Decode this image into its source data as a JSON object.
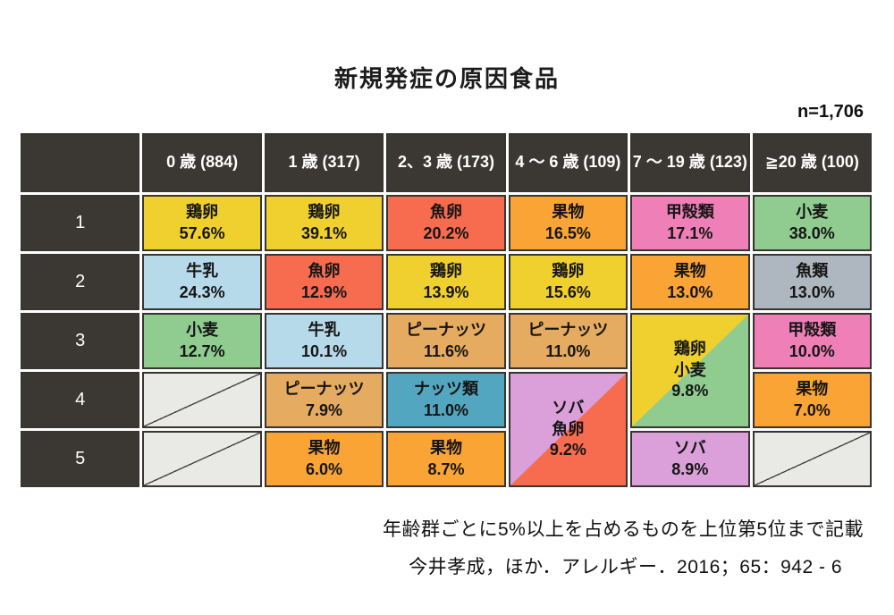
{
  "title": "新規発症の原因食品",
  "sample_size_label": "n=1,706",
  "footnote": "年齢群ごとに5%以上を占めるものを上位第5位まで記載",
  "citation": "今井孝成，ほか．アレルギー．2016；65：942 - 6",
  "colors": {
    "egg": "#efd02f",
    "fish_roe": "#f76b4e",
    "fruit": "#f9a435",
    "crustacean": "#ee7fb7",
    "wheat": "#90cc90",
    "milk": "#b7daeb",
    "fish": "#aeb7bf",
    "peanut": "#e5ab60",
    "nuts": "#53a6bf",
    "buckwheat": "#db9fd9",
    "header_bg": "#3b3733",
    "empty_bg": "#e9e9e6"
  },
  "chart_data": {
    "type": "table",
    "title": "新規発症の原因食品",
    "n_total": 1706,
    "columns": [
      {
        "age": "0 歳",
        "n": "(884)",
        "size": 884
      },
      {
        "age": "1 歳",
        "n": "(317)",
        "size": 317
      },
      {
        "age": "2、3 歳",
        "n": "(173)",
        "size": 173
      },
      {
        "age": "4 ～ 6 歳",
        "n": "(109)",
        "size": 109
      },
      {
        "age": "7 ～ 19 歳",
        "n": "(123)",
        "size": 123
      },
      {
        "age": "≧20 歳",
        "n": "(100)",
        "size": 100
      }
    ],
    "rows": [
      {
        "rank": "1",
        "cells": [
          {
            "food": "鶏卵",
            "value": "57.6%",
            "color": "egg"
          },
          {
            "food": "鶏卵",
            "value": "39.1%",
            "color": "egg"
          },
          {
            "food": "魚卵",
            "value": "20.2%",
            "color": "fish_roe"
          },
          {
            "food": "果物",
            "value": "16.5%",
            "color": "fruit"
          },
          {
            "food": "甲殻類",
            "value": "17.1%",
            "color": "crustacean"
          },
          {
            "food": "小麦",
            "value": "38.0%",
            "color": "wheat"
          }
        ]
      },
      {
        "rank": "2",
        "cells": [
          {
            "food": "牛乳",
            "value": "24.3%",
            "color": "milk"
          },
          {
            "food": "魚卵",
            "value": "12.9%",
            "color": "fish_roe"
          },
          {
            "food": "鶏卵",
            "value": "13.9%",
            "color": "egg"
          },
          {
            "food": "鶏卵",
            "value": "15.6%",
            "color": "egg"
          },
          {
            "food": "果物",
            "value": "13.0%",
            "color": "fruit"
          },
          {
            "food": "魚類",
            "value": "13.0%",
            "color": "fish"
          }
        ]
      },
      {
        "rank": "3",
        "cells": [
          {
            "food": "小麦",
            "value": "12.7%",
            "color": "wheat"
          },
          {
            "food": "牛乳",
            "value": "10.1%",
            "color": "milk"
          },
          {
            "food": "ピーナッツ",
            "value": "11.6%",
            "color": "peanut"
          },
          {
            "food": "ピーナッツ",
            "value": "11.0%",
            "color": "peanut"
          },
          {
            "food": "鶏卵",
            "food2": "小麦",
            "value": "9.8%",
            "color": "egg",
            "color2": "wheat",
            "rowspan": 2
          },
          {
            "food": "甲殻類",
            "value": "10.0%",
            "color": "crustacean"
          }
        ]
      },
      {
        "rank": "4",
        "cells": [
          {
            "empty": true
          },
          {
            "food": "ピーナッツ",
            "value": "7.9%",
            "color": "peanut"
          },
          {
            "food": "ナッツ類",
            "value": "11.0%",
            "color": "nuts"
          },
          {
            "food": "ソバ",
            "food2": "魚卵",
            "value": "9.2%",
            "color": "buckwheat",
            "color2": "fish_roe",
            "rowspan": 2
          },
          {
            "food": "果物",
            "value": "7.0%",
            "color": "fruit"
          }
        ]
      },
      {
        "rank": "5",
        "cells": [
          {
            "empty": true
          },
          {
            "food": "果物",
            "value": "6.0%",
            "color": "fruit"
          },
          {
            "food": "果物",
            "value": "8.7%",
            "color": "fruit"
          },
          {
            "food": "ソバ",
            "value": "8.9%",
            "color": "buckwheat"
          },
          {
            "empty": true
          }
        ]
      }
    ]
  }
}
